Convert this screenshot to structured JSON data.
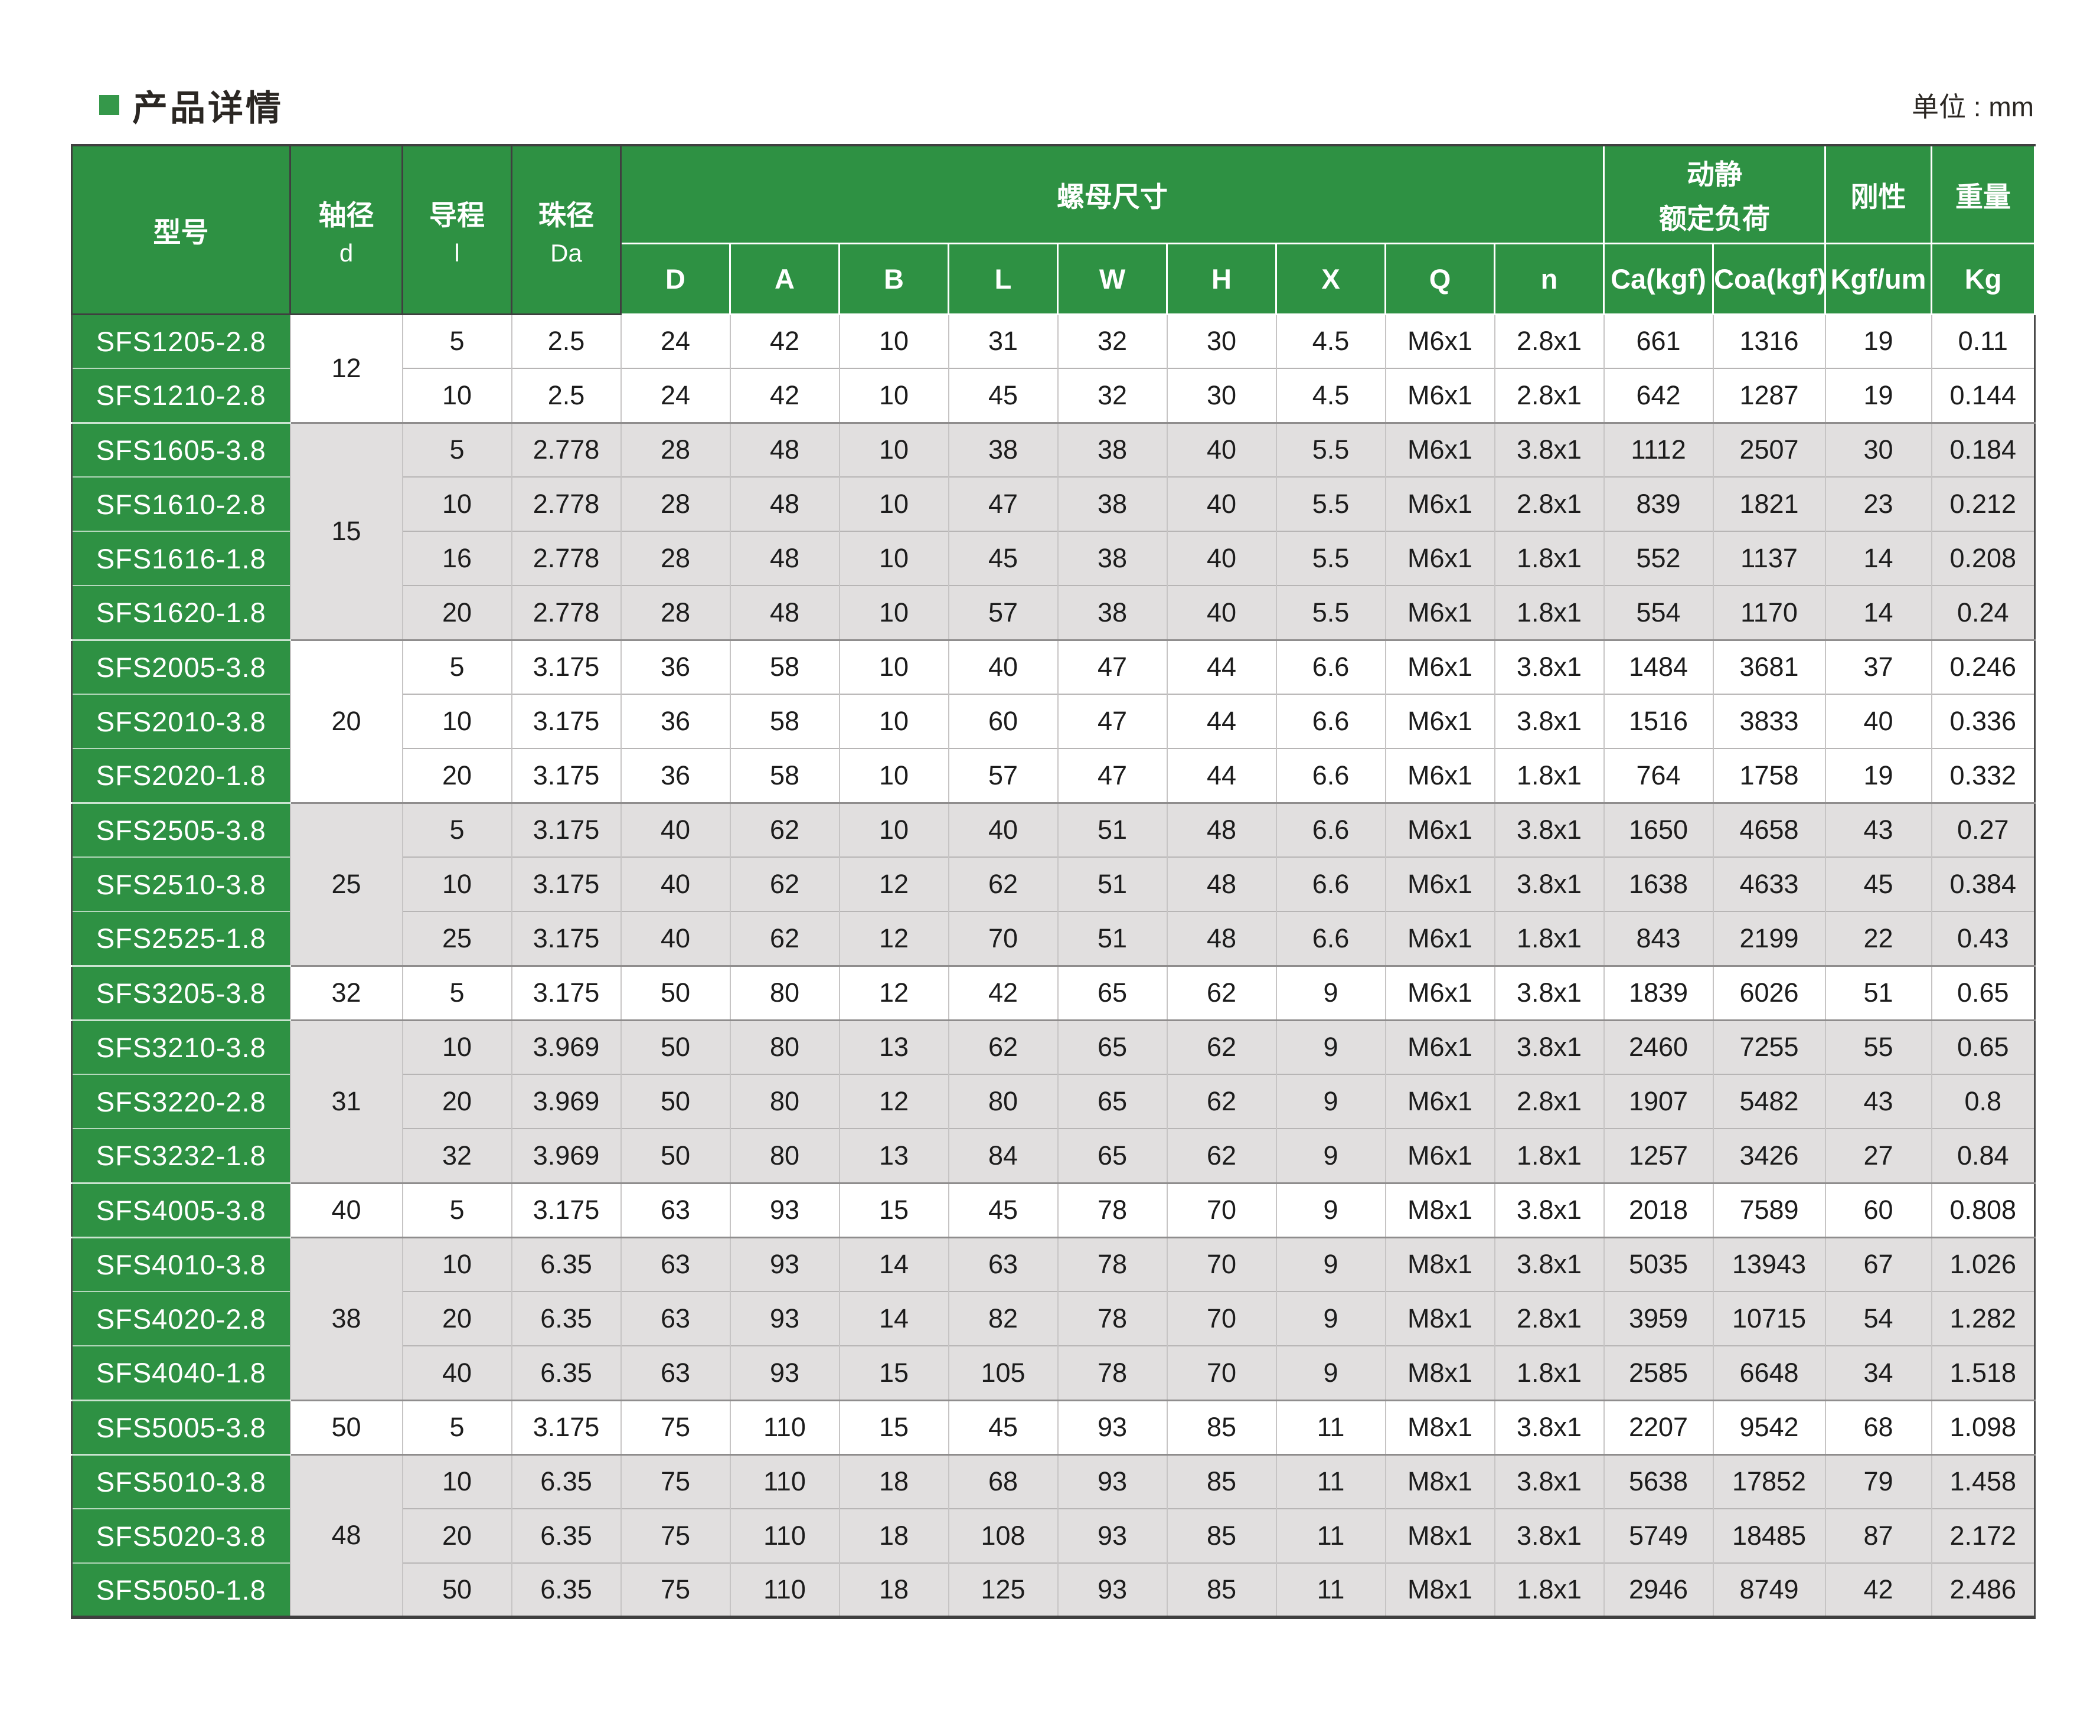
{
  "page": {
    "title": "产品详情",
    "unit_label": "单位 : mm"
  },
  "colors": {
    "header_green": "#2e9143",
    "bullet_green": "#35984a",
    "band_gray": "#e1dfdf",
    "band_white": "#ffffff"
  },
  "table": {
    "header": {
      "model": "型号",
      "shaft_zh": "轴径",
      "shaft_sym": "d",
      "lead_zh": "导程",
      "lead_sym": "l",
      "ball_zh": "珠径",
      "ball_sym": "Da",
      "nut": "螺母尺寸",
      "nut_cols": [
        "D",
        "A",
        "B",
        "L",
        "W",
        "H",
        "X",
        "Q",
        "n"
      ],
      "load_line1": "动静",
      "load_line2": "额定负荷",
      "load_cols": [
        "Ca(kgf)",
        "Coa(kgf)"
      ],
      "rigidity": {
        "label": "刚性",
        "sub": "Kgf/um"
      },
      "weight": {
        "label": "重量",
        "sub": "Kg"
      }
    },
    "groups": [
      {
        "d": "12",
        "shade": "white",
        "rows": [
          {
            "model": "SFS1205-2.8",
            "lead": "5",
            "da": "2.5",
            "D": "24",
            "A": "42",
            "B": "10",
            "L": "31",
            "W": "32",
            "H": "30",
            "X": "4.5",
            "Q": "M6x1",
            "n": "2.8x1",
            "ca": "661",
            "coa": "1316",
            "k": "19",
            "kg": "0.11"
          },
          {
            "model": "SFS1210-2.8",
            "lead": "10",
            "da": "2.5",
            "D": "24",
            "A": "42",
            "B": "10",
            "L": "45",
            "W": "32",
            "H": "30",
            "X": "4.5",
            "Q": "M6x1",
            "n": "2.8x1",
            "ca": "642",
            "coa": "1287",
            "k": "19",
            "kg": "0.144"
          }
        ]
      },
      {
        "d": "15",
        "shade": "gray",
        "rows": [
          {
            "model": "SFS1605-3.8",
            "lead": "5",
            "da": "2.778",
            "D": "28",
            "A": "48",
            "B": "10",
            "L": "38",
            "W": "38",
            "H": "40",
            "X": "5.5",
            "Q": "M6x1",
            "n": "3.8x1",
            "ca": "1112",
            "coa": "2507",
            "k": "30",
            "kg": "0.184"
          },
          {
            "model": "SFS1610-2.8",
            "lead": "10",
            "da": "2.778",
            "D": "28",
            "A": "48",
            "B": "10",
            "L": "47",
            "W": "38",
            "H": "40",
            "X": "5.5",
            "Q": "M6x1",
            "n": "2.8x1",
            "ca": "839",
            "coa": "1821",
            "k": "23",
            "kg": "0.212"
          },
          {
            "model": "SFS1616-1.8",
            "lead": "16",
            "da": "2.778",
            "D": "28",
            "A": "48",
            "B": "10",
            "L": "45",
            "W": "38",
            "H": "40",
            "X": "5.5",
            "Q": "M6x1",
            "n": "1.8x1",
            "ca": "552",
            "coa": "1137",
            "k": "14",
            "kg": "0.208"
          },
          {
            "model": "SFS1620-1.8",
            "lead": "20",
            "da": "2.778",
            "D": "28",
            "A": "48",
            "B": "10",
            "L": "57",
            "W": "38",
            "H": "40",
            "X": "5.5",
            "Q": "M6x1",
            "n": "1.8x1",
            "ca": "554",
            "coa": "1170",
            "k": "14",
            "kg": "0.24"
          }
        ]
      },
      {
        "d": "20",
        "shade": "white",
        "rows": [
          {
            "model": "SFS2005-3.8",
            "lead": "5",
            "da": "3.175",
            "D": "36",
            "A": "58",
            "B": "10",
            "L": "40",
            "W": "47",
            "H": "44",
            "X": "6.6",
            "Q": "M6x1",
            "n": "3.8x1",
            "ca": "1484",
            "coa": "3681",
            "k": "37",
            "kg": "0.246"
          },
          {
            "model": "SFS2010-3.8",
            "lead": "10",
            "da": "3.175",
            "D": "36",
            "A": "58",
            "B": "10",
            "L": "60",
            "W": "47",
            "H": "44",
            "X": "6.6",
            "Q": "M6x1",
            "n": "3.8x1",
            "ca": "1516",
            "coa": "3833",
            "k": "40",
            "kg": "0.336"
          },
          {
            "model": "SFS2020-1.8",
            "lead": "20",
            "da": "3.175",
            "D": "36",
            "A": "58",
            "B": "10",
            "L": "57",
            "W": "47",
            "H": "44",
            "X": "6.6",
            "Q": "M6x1",
            "n": "1.8x1",
            "ca": "764",
            "coa": "1758",
            "k": "19",
            "kg": "0.332"
          }
        ]
      },
      {
        "d": "25",
        "shade": "gray",
        "rows": [
          {
            "model": "SFS2505-3.8",
            "lead": "5",
            "da": "3.175",
            "D": "40",
            "A": "62",
            "B": "10",
            "L": "40",
            "W": "51",
            "H": "48",
            "X": "6.6",
            "Q": "M6x1",
            "n": "3.8x1",
            "ca": "1650",
            "coa": "4658",
            "k": "43",
            "kg": "0.27"
          },
          {
            "model": "SFS2510-3.8",
            "lead": "10",
            "da": "3.175",
            "D": "40",
            "A": "62",
            "B": "12",
            "L": "62",
            "W": "51",
            "H": "48",
            "X": "6.6",
            "Q": "M6x1",
            "n": "3.8x1",
            "ca": "1638",
            "coa": "4633",
            "k": "45",
            "kg": "0.384"
          },
          {
            "model": "SFS2525-1.8",
            "lead": "25",
            "da": "3.175",
            "D": "40",
            "A": "62",
            "B": "12",
            "L": "70",
            "W": "51",
            "H": "48",
            "X": "6.6",
            "Q": "M6x1",
            "n": "1.8x1",
            "ca": "843",
            "coa": "2199",
            "k": "22",
            "kg": "0.43"
          }
        ]
      },
      {
        "d": "32",
        "shade": "white",
        "rows": [
          {
            "model": "SFS3205-3.8",
            "lead": "5",
            "da": "3.175",
            "D": "50",
            "A": "80",
            "B": "12",
            "L": "42",
            "W": "65",
            "H": "62",
            "X": "9",
            "Q": "M6x1",
            "n": "3.8x1",
            "ca": "1839",
            "coa": "6026",
            "k": "51",
            "kg": "0.65"
          }
        ]
      },
      {
        "d": "31",
        "shade": "gray",
        "rows": [
          {
            "model": "SFS3210-3.8",
            "lead": "10",
            "da": "3.969",
            "D": "50",
            "A": "80",
            "B": "13",
            "L": "62",
            "W": "65",
            "H": "62",
            "X": "9",
            "Q": "M6x1",
            "n": "3.8x1",
            "ca": "2460",
            "coa": "7255",
            "k": "55",
            "kg": "0.65"
          },
          {
            "model": "SFS3220-2.8",
            "lead": "20",
            "da": "3.969",
            "D": "50",
            "A": "80",
            "B": "12",
            "L": "80",
            "W": "65",
            "H": "62",
            "X": "9",
            "Q": "M6x1",
            "n": "2.8x1",
            "ca": "1907",
            "coa": "5482",
            "k": "43",
            "kg": "0.8"
          },
          {
            "model": "SFS3232-1.8",
            "lead": "32",
            "da": "3.969",
            "D": "50",
            "A": "80",
            "B": "13",
            "L": "84",
            "W": "65",
            "H": "62",
            "X": "9",
            "Q": "M6x1",
            "n": "1.8x1",
            "ca": "1257",
            "coa": "3426",
            "k": "27",
            "kg": "0.84"
          }
        ]
      },
      {
        "d": "40",
        "shade": "white",
        "rows": [
          {
            "model": "SFS4005-3.8",
            "lead": "5",
            "da": "3.175",
            "D": "63",
            "A": "93",
            "B": "15",
            "L": "45",
            "W": "78",
            "H": "70",
            "X": "9",
            "Q": "M8x1",
            "n": "3.8x1",
            "ca": "2018",
            "coa": "7589",
            "k": "60",
            "kg": "0.808"
          }
        ]
      },
      {
        "d": "38",
        "shade": "gray",
        "rows": [
          {
            "model": "SFS4010-3.8",
            "lead": "10",
            "da": "6.35",
            "D": "63",
            "A": "93",
            "B": "14",
            "L": "63",
            "W": "78",
            "H": "70",
            "X": "9",
            "Q": "M8x1",
            "n": "3.8x1",
            "ca": "5035",
            "coa": "13943",
            "k": "67",
            "kg": "1.026"
          },
          {
            "model": "SFS4020-2.8",
            "lead": "20",
            "da": "6.35",
            "D": "63",
            "A": "93",
            "B": "14",
            "L": "82",
            "W": "78",
            "H": "70",
            "X": "9",
            "Q": "M8x1",
            "n": "2.8x1",
            "ca": "3959",
            "coa": "10715",
            "k": "54",
            "kg": "1.282"
          },
          {
            "model": "SFS4040-1.8",
            "lead": "40",
            "da": "6.35",
            "D": "63",
            "A": "93",
            "B": "15",
            "L": "105",
            "W": "78",
            "H": "70",
            "X": "9",
            "Q": "M8x1",
            "n": "1.8x1",
            "ca": "2585",
            "coa": "6648",
            "k": "34",
            "kg": "1.518"
          }
        ]
      },
      {
        "d": "50",
        "shade": "white",
        "rows": [
          {
            "model": "SFS5005-3.8",
            "lead": "5",
            "da": "3.175",
            "D": "75",
            "A": "110",
            "B": "15",
            "L": "45",
            "W": "93",
            "H": "85",
            "X": "11",
            "Q": "M8x1",
            "n": "3.8x1",
            "ca": "2207",
            "coa": "9542",
            "k": "68",
            "kg": "1.098"
          }
        ]
      },
      {
        "d": "48",
        "shade": "gray",
        "rows": [
          {
            "model": "SFS5010-3.8",
            "lead": "10",
            "da": "6.35",
            "D": "75",
            "A": "110",
            "B": "18",
            "L": "68",
            "W": "93",
            "H": "85",
            "X": "11",
            "Q": "M8x1",
            "n": "3.8x1",
            "ca": "5638",
            "coa": "17852",
            "k": "79",
            "kg": "1.458"
          },
          {
            "model": "SFS5020-3.8",
            "lead": "20",
            "da": "6.35",
            "D": "75",
            "A": "110",
            "B": "18",
            "L": "108",
            "W": "93",
            "H": "85",
            "X": "11",
            "Q": "M8x1",
            "n": "3.8x1",
            "ca": "5749",
            "coa": "18485",
            "k": "87",
            "kg": "2.172"
          },
          {
            "model": "SFS5050-1.8",
            "lead": "50",
            "da": "6.35",
            "D": "75",
            "A": "110",
            "B": "18",
            "L": "125",
            "W": "93",
            "H": "85",
            "X": "11",
            "Q": "M8x1",
            "n": "1.8x1",
            "ca": "2946",
            "coa": "8749",
            "k": "42",
            "kg": "2.486"
          }
        ]
      }
    ]
  }
}
